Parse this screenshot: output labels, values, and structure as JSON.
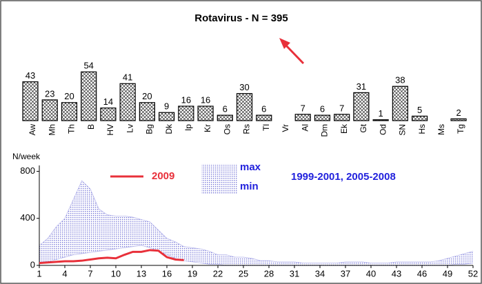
{
  "chart_data": [
    {
      "type": "bar",
      "title": "Rotavirus - N = 395",
      "categories": [
        "Aw",
        "Mh",
        "Th",
        "B",
        "HV",
        "Lv",
        "Bg",
        "Dk",
        "Ip",
        "Kr",
        "Os",
        "Rs",
        "Tl",
        "Vr",
        "Al",
        "Dm",
        "Ek",
        "Gt",
        "Od",
        "SN",
        "Hs",
        "Ms",
        "Tg"
      ],
      "values": [
        43,
        23,
        20,
        54,
        14,
        41,
        20,
        9,
        16,
        16,
        6,
        30,
        6,
        null,
        7,
        6,
        7,
        31,
        1,
        38,
        5,
        null,
        2
      ]
    },
    {
      "type": "line",
      "y_label": "N/week",
      "x": [
        1,
        2,
        3,
        4,
        5,
        6,
        7,
        8,
        9,
        10,
        11,
        12,
        13,
        14,
        15,
        16,
        17,
        18,
        19,
        20,
        21,
        22,
        23,
        24,
        25,
        26,
        27,
        28,
        29,
        30,
        31,
        32,
        33,
        34,
        35,
        36,
        37,
        38,
        39,
        40,
        41,
        42,
        43,
        44,
        45,
        46,
        47,
        48,
        49,
        50,
        51,
        52
      ],
      "xlim": [
        1,
        52
      ],
      "xticks": [
        1,
        4,
        7,
        10,
        13,
        16,
        19,
        22,
        25,
        28,
        31,
        34,
        37,
        40,
        43,
        46,
        49,
        52
      ],
      "ylim": [
        0,
        850
      ],
      "yticks": [
        0,
        400,
        800
      ],
      "series": [
        {
          "name": "2009",
          "color": "#e8303a",
          "values": [
            20,
            25,
            30,
            35,
            35,
            40,
            50,
            60,
            65,
            60,
            90,
            115,
            115,
            130,
            125,
            70,
            50,
            45,
            null,
            null,
            null,
            null,
            null,
            null,
            null,
            null,
            null,
            null,
            null,
            null,
            null,
            null,
            null,
            null,
            null,
            null,
            null,
            null,
            null,
            null,
            null,
            null,
            null,
            null,
            null,
            null,
            null,
            null,
            null,
            null,
            null,
            null
          ]
        }
      ],
      "band": {
        "name": "1999-2001, 2005-2008",
        "color": "#3a3adc",
        "upper_name": "max",
        "lower_name": "min",
        "upper": [
          170,
          230,
          330,
          400,
          560,
          720,
          650,
          480,
          430,
          420,
          420,
          410,
          390,
          370,
          300,
          230,
          200,
          160,
          150,
          140,
          120,
          90,
          90,
          70,
          70,
          60,
          40,
          40,
          30,
          30,
          30,
          20,
          20,
          20,
          20,
          20,
          30,
          30,
          30,
          20,
          20,
          20,
          30,
          30,
          30,
          30,
          30,
          40,
          60,
          80,
          100,
          120
        ],
        "lower": [
          20,
          30,
          50,
          70,
          90,
          100,
          110,
          120,
          130,
          140,
          150,
          160,
          170,
          150,
          120,
          90,
          60,
          40,
          30,
          20,
          10,
          10,
          0,
          0,
          0,
          0,
          0,
          0,
          0,
          0,
          0,
          0,
          0,
          0,
          0,
          0,
          0,
          0,
          0,
          0,
          0,
          0,
          0,
          0,
          0,
          0,
          0,
          0,
          0,
          10,
          10,
          20
        ]
      }
    }
  ]
}
